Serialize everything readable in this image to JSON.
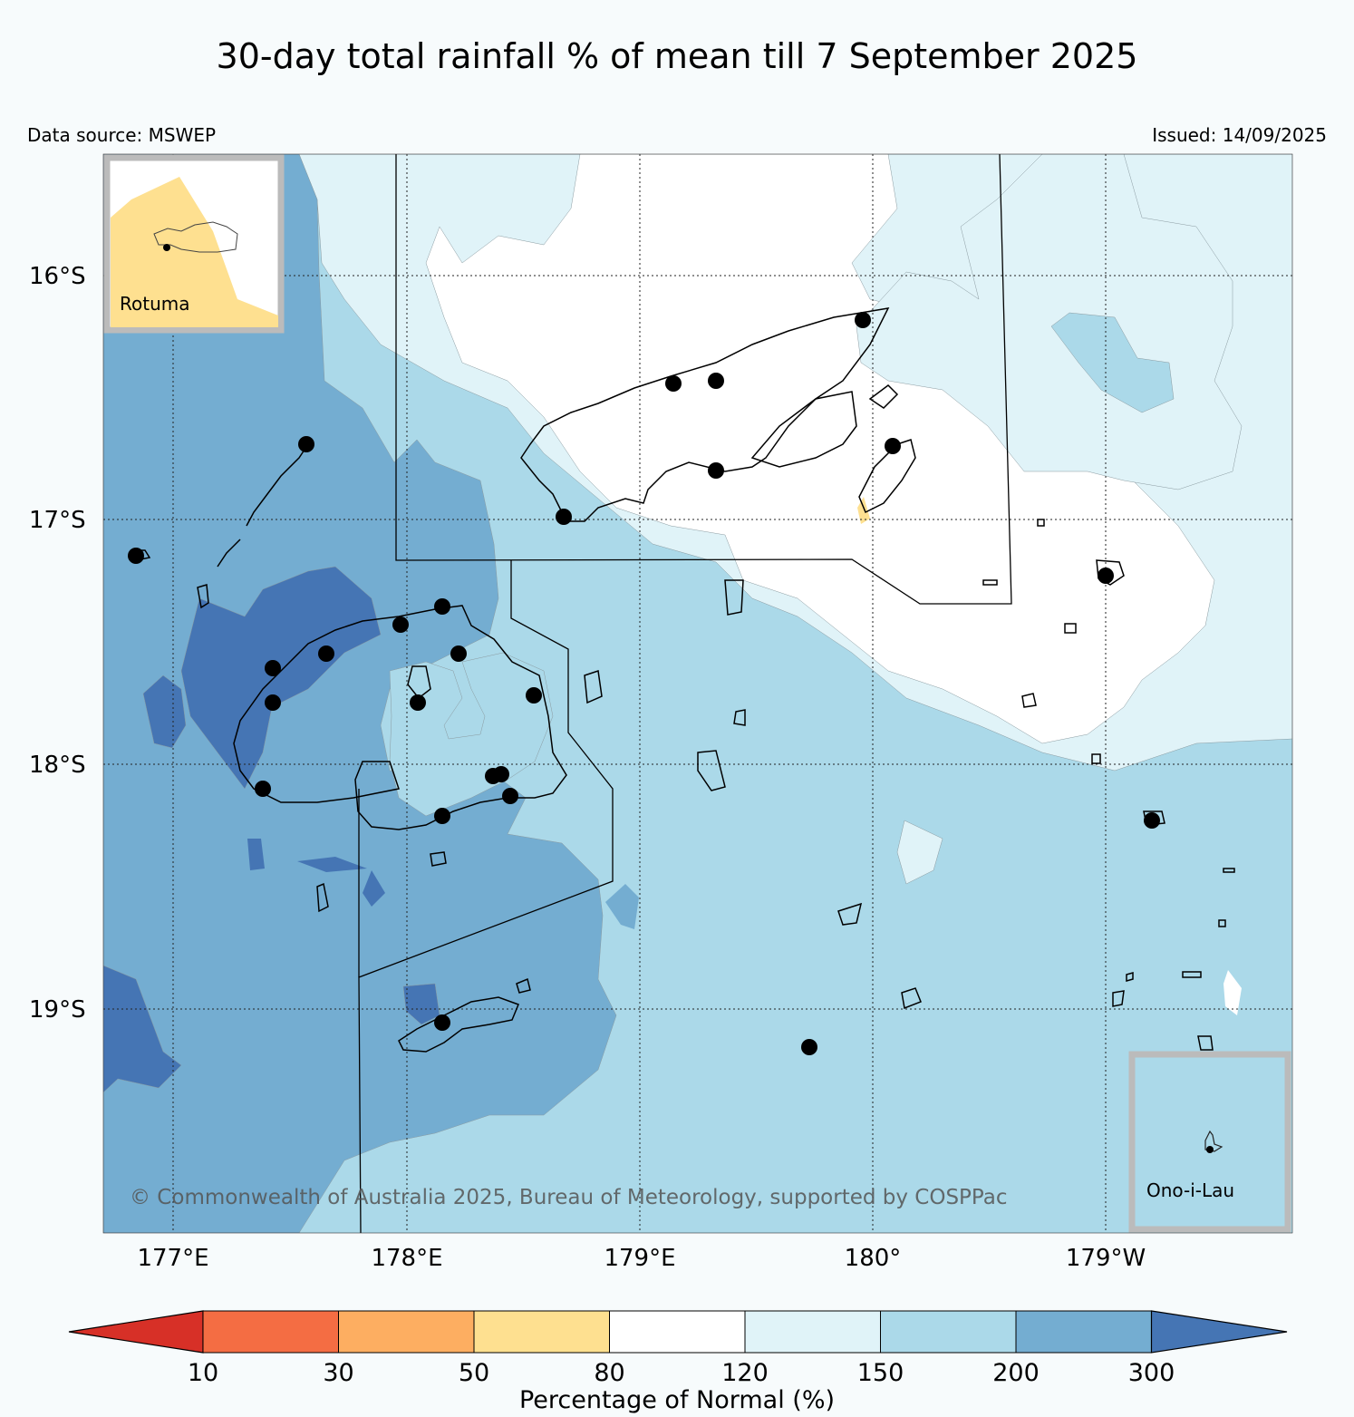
{
  "header": {
    "title": "30-day total rainfall % of mean till 7 September 2025",
    "source": "Data source: MSWEP",
    "issued": "Issued: 14/09/2025"
  },
  "map": {
    "lat_labels": [
      "16°S",
      "17°S",
      "18°S",
      "19°S"
    ],
    "lon_labels": [
      "177°E",
      "178°E",
      "179°E",
      "180°",
      "179°W"
    ],
    "insets": {
      "rotuma": "Rotuma",
      "ono": "Ono-i-Lau"
    },
    "copyright": "© Commonwealth of Australia 2025, Bureau of Meteorology, supported by COSPPac"
  },
  "colorbar": {
    "label": "Percentage of Normal (%)",
    "ticks": [
      "10",
      "30",
      "50",
      "80",
      "120",
      "150",
      "200",
      "300"
    ],
    "colors": [
      "#d73027",
      "#f46d43",
      "#fdae61",
      "#fee090",
      "#ffffff",
      "#e0f3f8",
      "#abd9e9",
      "#74add1",
      "#4575b4"
    ]
  }
}
